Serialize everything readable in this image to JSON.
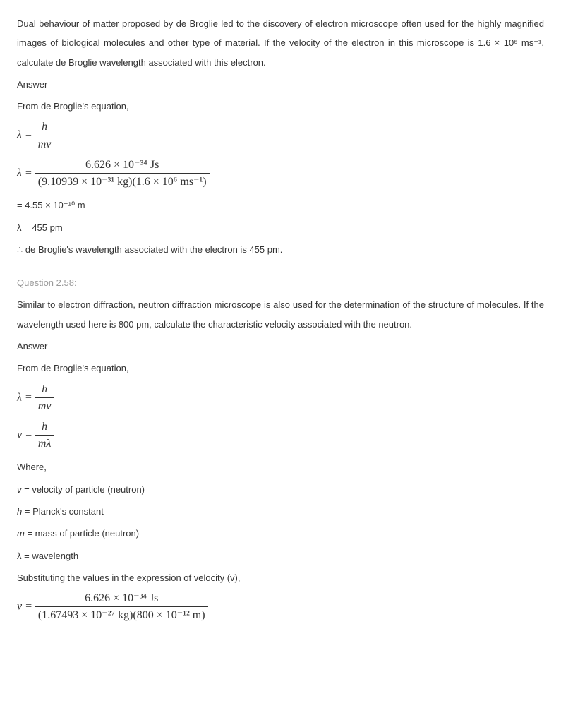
{
  "q57": {
    "problem": "Dual behaviour of matter proposed by de Broglie led to the discovery of electron microscope often used for the highly magnified images of biological molecules and other type of material. If the velocity of the electron in this microscope is 1.6 × 10⁶ ms⁻¹, calculate de Broglie wavelength associated with this electron.",
    "answer_label": "Answer",
    "from": "From de Broglie's equation,",
    "eq1": {
      "lhs": "λ =",
      "num": "h",
      "den": "mv"
    },
    "eq2": {
      "lhs": "λ =",
      "num": "6.626 × 10⁻³⁴  Js",
      "den": "(9.10939 × 10⁻³¹  kg)(1.6 × 10⁶  ms⁻¹)"
    },
    "res1": "= 4.55 × 10⁻¹⁰ m",
    "res2": "λ = 455 pm",
    "conclusion": "∴ de Broglie's wavelength associated with the electron is 455 pm."
  },
  "q58": {
    "heading": "Question 2.58:",
    "problem": "Similar to electron diffraction, neutron diffraction microscope is also used for the determination of the structure of molecules. If the wavelength used here is 800 pm, calculate the characteristic velocity associated with the neutron.",
    "answer_label": "Answer",
    "from": "From de Broglie's equation,",
    "eq1": {
      "lhs": "λ =",
      "num": "h",
      "den": "mv"
    },
    "eq2": {
      "lhs": "v =",
      "num": "h",
      "den": "mλ"
    },
    "where": "Where,",
    "defs": {
      "v": "v = velocity of particle (neutron)",
      "h": "h = Planck's constant",
      "m": "m = mass of particle (neutron)",
      "l": "λ = wavelength"
    },
    "subst": "Substituting the values in the expression of velocity (v),",
    "eq3": {
      "lhs": "v =",
      "num": "6.626 × 10⁻³⁴ Js",
      "den": "(1.67493 × 10⁻²⁷ kg)(800 × 10⁻¹² m)"
    }
  }
}
